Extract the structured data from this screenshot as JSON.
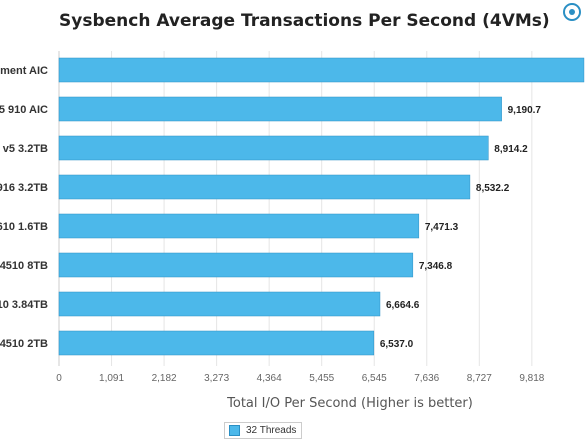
{
  "chart_data": {
    "type": "bar",
    "orientation": "horizontal",
    "title": "Sysbench Average Transactions Per Second (4VMs)",
    "xlabel": "Total I/O Per Second (Higher is better)",
    "ylabel": "",
    "categories": [
      "ment AIC",
      "5 910 AIC",
      "v5 3.2TB",
      "916 3.2TB",
      "610 1.6TB",
      "4510 8TB",
      "10 3.84TB",
      "4510 2TB"
    ],
    "series": [
      {
        "name": "32 Threads",
        "values": [
          10900,
          9190.7,
          8914.2,
          8532.2,
          7471.3,
          7346.8,
          6664.6,
          6537.0
        ],
        "data_labels": [
          "",
          "9,190.7",
          "8,914.2",
          "8,532.2",
          "7,471.3",
          "7,346.8",
          "6,664.6",
          "6,537.0"
        ],
        "color": "#4cb8ea"
      }
    ],
    "xticks": [
      "0",
      "1,091",
      "2,182",
      "3,273",
      "4,364",
      "5,455",
      "6,545",
      "7,636",
      "8,727",
      "9,818"
    ],
    "xtick_values": [
      0,
      1091,
      2182,
      3273,
      4364,
      5455,
      6545,
      7636,
      8727,
      9818
    ],
    "grid": true,
    "legend_position": "bottom-center"
  },
  "legend": {
    "label": "32 Threads"
  },
  "colors": {
    "bar": "#4cb8ea",
    "bar_border": "#2a8fc4",
    "grid": "#e5e5e5",
    "text": "#333333"
  },
  "icons": {
    "corner": "logo-icon"
  }
}
